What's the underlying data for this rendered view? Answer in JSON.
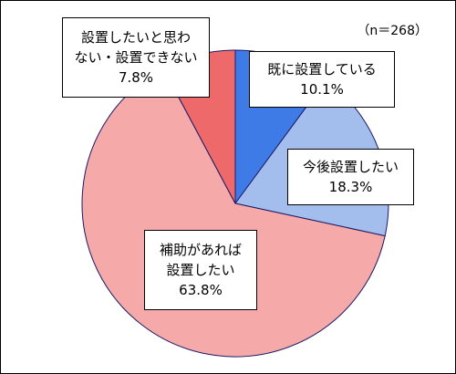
{
  "chart_data": {
    "type": "pie",
    "note": "（n＝268）",
    "start_angle_deg": 0,
    "direction": "clockwise",
    "slices": [
      {
        "label_lines": [
          "既に設置している"
        ],
        "value": 10.1,
        "value_label": "10.1%",
        "color": "#3f7be6"
      },
      {
        "label_lines": [
          "今後設置したい"
        ],
        "value": 18.3,
        "value_label": "18.3%",
        "color": "#a3bdec"
      },
      {
        "label_lines": [
          "補助があれば",
          "設置したい"
        ],
        "value": 63.8,
        "value_label": "63.8%",
        "color": "#f6a9a9"
      },
      {
        "label_lines": [
          "設置したいと思わ",
          "ない・設置できない"
        ],
        "value": 7.8,
        "value_label": "7.8%",
        "color": "#ee6a6a"
      }
    ]
  }
}
